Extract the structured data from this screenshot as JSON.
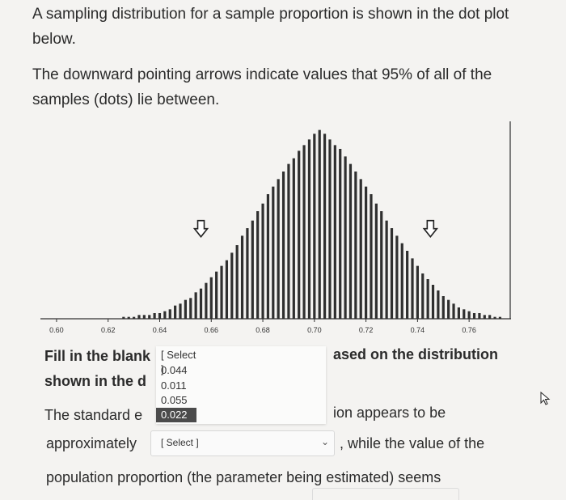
{
  "intro": {
    "p1": "A sampling distribution for a sample proportion is shown in the dot plot below.",
    "p2": "The downward pointing arrows indicate values that 95% of all of the samples (dots) lie between."
  },
  "question": {
    "line1a": "Fill in the blank",
    "line1b": "ased on the distribution",
    "line2a": "shown in the d",
    "line3a": "The standard e",
    "line3b": "ion appears to be",
    "line4a": "approximately",
    "line4b": ", while the value of the",
    "line5": "population proportion (the parameter being estimated) seems"
  },
  "dropdown_open": {
    "placeholder": "[ Select ]",
    "options": [
      "0.044",
      "0.011",
      "0.055",
      "0.022"
    ],
    "highlighted": "0.022"
  },
  "select_2": {
    "placeholder": "[ Select ]"
  },
  "chart_data": {
    "type": "bar",
    "title": "",
    "xlabel": "",
    "ylabel": "",
    "xlim": [
      0.595,
      0.775
    ],
    "tick_labels": [
      "0.60",
      "0.62",
      "0.64",
      "0.66",
      "0.68",
      "0.70",
      "0.72",
      "0.74",
      "0.76"
    ],
    "ticks": [
      0.6,
      0.62,
      0.64,
      0.66,
      0.68,
      0.7,
      0.72,
      0.74,
      0.76
    ],
    "arrows": [
      0.656,
      0.745
    ],
    "x": [
      0.626,
      0.628,
      0.63,
      0.632,
      0.634,
      0.636,
      0.638,
      0.64,
      0.642,
      0.644,
      0.646,
      0.648,
      0.65,
      0.652,
      0.654,
      0.656,
      0.658,
      0.66,
      0.662,
      0.664,
      0.666,
      0.668,
      0.67,
      0.672,
      0.674,
      0.676,
      0.678,
      0.68,
      0.682,
      0.684,
      0.686,
      0.688,
      0.69,
      0.692,
      0.694,
      0.696,
      0.698,
      0.7,
      0.702,
      0.704,
      0.706,
      0.708,
      0.71,
      0.712,
      0.714,
      0.716,
      0.718,
      0.72,
      0.722,
      0.724,
      0.726,
      0.728,
      0.73,
      0.732,
      0.734,
      0.736,
      0.738,
      0.74,
      0.742,
      0.744,
      0.746,
      0.748,
      0.75,
      0.752,
      0.754,
      0.756,
      0.758,
      0.76,
      0.762,
      0.764,
      0.766,
      0.768,
      0.77,
      0.772
    ],
    "values": [
      1,
      1,
      1,
      2,
      2,
      2,
      3,
      3,
      4,
      5,
      7,
      8,
      10,
      11,
      14,
      16,
      19,
      22,
      25,
      28,
      31,
      35,
      39,
      44,
      48,
      52,
      57,
      61,
      66,
      70,
      74,
      78,
      82,
      85,
      89,
      92,
      95,
      98,
      100,
      98,
      95,
      92,
      90,
      86,
      82,
      78,
      74,
      70,
      66,
      61,
      57,
      52,
      48,
      44,
      40,
      36,
      32,
      28,
      24,
      21,
      18,
      15,
      12,
      10,
      8,
      6,
      5,
      4,
      3,
      3,
      2,
      2,
      1,
      1
    ],
    "ylim": [
      0,
      102
    ]
  }
}
